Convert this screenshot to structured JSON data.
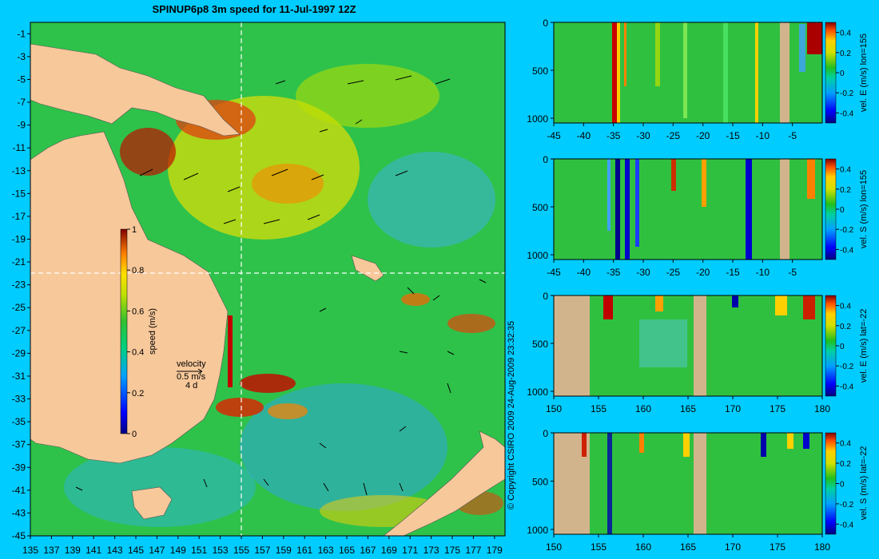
{
  "chart_data": [
    {
      "type": "heatmap",
      "title": "SPINUP6p8 3m speed for 11-Jul-1997 12Z",
      "xticks": [
        "135",
        "137",
        "139",
        "141",
        "143",
        "145",
        "147",
        "149",
        "151",
        "153",
        "155",
        "157",
        "159",
        "161",
        "163",
        "165",
        "167",
        "169",
        "171",
        "173",
        "175",
        "177",
        "179"
      ],
      "yticks": [
        "-1",
        "-3",
        "-5",
        "-7",
        "-9",
        "-11",
        "-13",
        "-15",
        "-17",
        "-19",
        "-21",
        "-23",
        "-25",
        "-27",
        "-29",
        "-31",
        "-33",
        "-35",
        "-37",
        "-39",
        "-41",
        "-43",
        "-45"
      ],
      "xlim": [
        135,
        180
      ],
      "ylim": [
        -45,
        0
      ],
      "section_lines": {
        "lon": 155,
        "lat": -22
      },
      "colorbar": {
        "label": "speed (m/s)",
        "ticks": [
          "0",
          "0.2",
          "0.4",
          "0.6",
          "0.8",
          "1"
        ],
        "range": [
          0,
          1
        ]
      },
      "velocity_key": {
        "title": "velocity",
        "scale": "0.5 m/s",
        "duration": "4 d"
      },
      "colors": {
        "land": "#f7c89a",
        "background": "#00ccff"
      }
    },
    {
      "type": "heatmap",
      "xticks": [
        "-45",
        "-40",
        "-35",
        "-30",
        "-25",
        "-20",
        "-15",
        "-10",
        "-5"
      ],
      "yticks": [
        "0",
        "500",
        "1000"
      ],
      "xlim": [
        -45,
        0
      ],
      "ylim": [
        1050,
        0
      ],
      "colorbar": {
        "label": "vel. E (m/s) lon=155",
        "ticks": [
          "0.4",
          "0.2",
          "0",
          "-0.2",
          "-0.4"
        ],
        "range": [
          -0.5,
          0.5
        ]
      }
    },
    {
      "type": "heatmap",
      "xticks": [
        "-45",
        "-40",
        "-35",
        "-30",
        "-25",
        "-20",
        "-15",
        "-10",
        "-5"
      ],
      "yticks": [
        "0",
        "500",
        "1000"
      ],
      "xlim": [
        -45,
        0
      ],
      "ylim": [
        1050,
        0
      ],
      "colorbar": {
        "label": "vel. S (m/s) lon=155",
        "ticks": [
          "0.4",
          "0.2",
          "0",
          "-0.2",
          "-0.4"
        ],
        "range": [
          -0.5,
          0.5
        ]
      }
    },
    {
      "type": "heatmap",
      "xticks": [
        "150",
        "155",
        "160",
        "165",
        "170",
        "175",
        "180"
      ],
      "yticks": [
        "0",
        "500",
        "1000"
      ],
      "xlim": [
        150,
        180
      ],
      "ylim": [
        1050,
        0
      ],
      "colorbar": {
        "label": "vel. E (m/s) lat=-22",
        "ticks": [
          "0.4",
          "0.2",
          "0",
          "-0.2",
          "-0.4"
        ],
        "range": [
          -0.5,
          0.5
        ]
      }
    },
    {
      "type": "heatmap",
      "xticks": [
        "150",
        "155",
        "160",
        "165",
        "170",
        "175",
        "180"
      ],
      "yticks": [
        "0",
        "500",
        "1000"
      ],
      "xlim": [
        150,
        180
      ],
      "ylim": [
        1050,
        0
      ],
      "colorbar": {
        "label": "vel. S (m/s) lat=-22",
        "ticks": [
          "0.4",
          "0.2",
          "0",
          "-0.2",
          "-0.4"
        ],
        "range": [
          -0.5,
          0.5
        ]
      }
    }
  ],
  "copyright": "© Copyright CSIRO 2009  24-Aug-2009 23:32:35"
}
